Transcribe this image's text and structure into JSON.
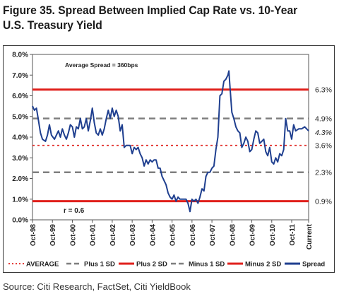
{
  "title": "Figure 35. Spread Between Implied Cap Rate vs. 10-Year U.S. Treasury Yield",
  "source": "Source: Citi Research, FactSet, Citi YieldBook",
  "chart_data": {
    "type": "line",
    "title": "Figure 35. Spread Between Implied Cap Rate vs. 10-Year U.S. Treasury Yield",
    "annotations": [
      "Average Spread = 360bps",
      "r =  0.6"
    ],
    "y_tick_labels": [
      "0.0%",
      "1.0%",
      "2.0%",
      "3.0%",
      "4.0%",
      "5.0%",
      "6.0%",
      "7.0%",
      "8.0%"
    ],
    "ylim": [
      0,
      8
    ],
    "x_tick_labels": [
      "Oct-98",
      "Oct-99",
      "Oct-00",
      "Oct-01",
      "Oct-02",
      "Oct-03",
      "Oct-04",
      "Oct-05",
      "Oct-06",
      "Oct-07",
      "Oct-08",
      "Oct-09",
      "Oct-10",
      "Oct-11",
      "Current"
    ],
    "x_tick_values": [
      1998.75,
      1999.75,
      2000.75,
      2001.75,
      2002.75,
      2003.75,
      2004.75,
      2005.75,
      2006.75,
      2007.75,
      2008.75,
      2009.75,
      2010.75,
      2011.75,
      2012.6
    ],
    "xlim": [
      1998.75,
      2012.6
    ],
    "reference_lines": [
      {
        "name": "AVERAGE",
        "value": 3.6,
        "label": "3.6%",
        "color": "#e0201c",
        "style": "dotted"
      },
      {
        "name": "Plus 1 SD",
        "value": 4.9,
        "label": "4.9%",
        "color": "#7f7f7f",
        "style": "dashed"
      },
      {
        "name": "Plus 2 SD",
        "value": 6.3,
        "label": "6.3%",
        "color": "#e0201c",
        "style": "solid"
      },
      {
        "name": "Minus 1 SD",
        "value": 2.3,
        "label": "2.3%",
        "color": "#7f7f7f",
        "style": "dashed"
      },
      {
        "name": "Minus 2 SD",
        "value": 0.9,
        "label": "0.9%",
        "color": "#e0201c",
        "style": "solid"
      }
    ],
    "current_value_label": "4.3%",
    "legend_position": "bottom",
    "legend": [
      "AVERAGE",
      "Plus 1 SD",
      "Plus 2 SD",
      "Minus 1 SD",
      "Minus 2 SD",
      "Spread"
    ],
    "series": [
      {
        "name": "Spread",
        "color": "#1f3f8f",
        "points": [
          [
            1998.75,
            5.5
          ],
          [
            1998.85,
            5.3
          ],
          [
            1998.95,
            5.4
          ],
          [
            1999.05,
            4.8
          ],
          [
            1999.15,
            4.2
          ],
          [
            1999.25,
            3.9
          ],
          [
            1999.4,
            3.8
          ],
          [
            1999.5,
            4.1
          ],
          [
            1999.6,
            4.6
          ],
          [
            1999.7,
            4.1
          ],
          [
            1999.85,
            3.9
          ],
          [
            1999.95,
            4.1
          ],
          [
            2000.05,
            4.3
          ],
          [
            2000.15,
            4.0
          ],
          [
            2000.25,
            4.4
          ],
          [
            2000.35,
            4.1
          ],
          [
            2000.45,
            3.9
          ],
          [
            2000.55,
            4.2
          ],
          [
            2000.65,
            4.6
          ],
          [
            2000.75,
            4.5
          ],
          [
            2000.85,
            4.0
          ],
          [
            2000.95,
            4.5
          ],
          [
            2001.05,
            4.4
          ],
          [
            2001.15,
            4.9
          ],
          [
            2001.25,
            4.4
          ],
          [
            2001.35,
            4.5
          ],
          [
            2001.45,
            4.9
          ],
          [
            2001.55,
            4.3
          ],
          [
            2001.65,
            4.8
          ],
          [
            2001.75,
            5.4
          ],
          [
            2001.85,
            4.7
          ],
          [
            2001.95,
            4.2
          ],
          [
            2002.05,
            4.1
          ],
          [
            2002.15,
            4.4
          ],
          [
            2002.25,
            4.1
          ],
          [
            2002.35,
            4.4
          ],
          [
            2002.45,
            4.9
          ],
          [
            2002.55,
            5.3
          ],
          [
            2002.65,
            4.9
          ],
          [
            2002.75,
            5.4
          ],
          [
            2002.85,
            5.0
          ],
          [
            2002.95,
            5.3
          ],
          [
            2003.05,
            5.0
          ],
          [
            2003.15,
            4.3
          ],
          [
            2003.25,
            4.6
          ],
          [
            2003.35,
            3.5
          ],
          [
            2003.45,
            3.6
          ],
          [
            2003.55,
            3.6
          ],
          [
            2003.65,
            3.6
          ],
          [
            2003.75,
            3.2
          ],
          [
            2003.85,
            3.5
          ],
          [
            2003.95,
            3.4
          ],
          [
            2004.05,
            3.5
          ],
          [
            2004.15,
            3.2
          ],
          [
            2004.25,
            3.0
          ],
          [
            2004.35,
            2.6
          ],
          [
            2004.45,
            2.9
          ],
          [
            2004.55,
            2.7
          ],
          [
            2004.65,
            2.9
          ],
          [
            2004.75,
            2.8
          ],
          [
            2004.85,
            2.9
          ],
          [
            2004.95,
            2.9
          ],
          [
            2005.05,
            2.5
          ],
          [
            2005.15,
            2.5
          ],
          [
            2005.25,
            2.1
          ],
          [
            2005.35,
            1.9
          ],
          [
            2005.45,
            1.7
          ],
          [
            2005.55,
            1.3
          ],
          [
            2005.65,
            1.1
          ],
          [
            2005.75,
            1.0
          ],
          [
            2005.85,
            1.2
          ],
          [
            2005.95,
            0.9
          ],
          [
            2006.05,
            1.1
          ],
          [
            2006.15,
            1.0
          ],
          [
            2006.25,
            1.0
          ],
          [
            2006.35,
            1.0
          ],
          [
            2006.45,
            1.0
          ],
          [
            2006.55,
            0.8
          ],
          [
            2006.65,
            0.4
          ],
          [
            2006.75,
            1.0
          ],
          [
            2006.85,
            0.9
          ],
          [
            2006.95,
            1.0
          ],
          [
            2007.05,
            0.8
          ],
          [
            2007.15,
            1.1
          ],
          [
            2007.25,
            1.5
          ],
          [
            2007.35,
            1.4
          ],
          [
            2007.45,
            2.1
          ],
          [
            2007.55,
            2.3
          ],
          [
            2007.65,
            2.3
          ],
          [
            2007.75,
            2.5
          ],
          [
            2007.85,
            2.6
          ],
          [
            2007.95,
            3.4
          ],
          [
            2008.05,
            4.0
          ],
          [
            2008.15,
            6.0
          ],
          [
            2008.25,
            6.1
          ],
          [
            2008.35,
            6.7
          ],
          [
            2008.45,
            6.8
          ],
          [
            2008.55,
            7.0
          ],
          [
            2008.6,
            7.2
          ],
          [
            2008.65,
            6.5
          ],
          [
            2008.75,
            5.2
          ],
          [
            2008.85,
            4.9
          ],
          [
            2008.95,
            4.5
          ],
          [
            2009.05,
            4.3
          ],
          [
            2009.15,
            4.2
          ],
          [
            2009.25,
            3.5
          ],
          [
            2009.35,
            3.7
          ],
          [
            2009.45,
            4.0
          ],
          [
            2009.55,
            3.8
          ],
          [
            2009.65,
            3.3
          ],
          [
            2009.75,
            3.4
          ],
          [
            2009.85,
            3.9
          ],
          [
            2009.95,
            4.3
          ],
          [
            2010.05,
            4.2
          ],
          [
            2010.15,
            3.7
          ],
          [
            2010.25,
            3.8
          ],
          [
            2010.35,
            3.9
          ],
          [
            2010.45,
            3.3
          ],
          [
            2010.55,
            3.1
          ],
          [
            2010.65,
            3.5
          ],
          [
            2010.75,
            2.8
          ],
          [
            2010.85,
            2.7
          ],
          [
            2010.95,
            3.0
          ],
          [
            2011.05,
            2.8
          ],
          [
            2011.15,
            3.2
          ],
          [
            2011.25,
            3.1
          ],
          [
            2011.35,
            3.4
          ],
          [
            2011.45,
            4.9
          ],
          [
            2011.55,
            4.3
          ],
          [
            2011.65,
            4.3
          ],
          [
            2011.75,
            3.9
          ],
          [
            2011.85,
            4.6
          ],
          [
            2011.95,
            4.3
          ],
          [
            2012.1,
            4.4
          ],
          [
            2012.25,
            4.4
          ],
          [
            2012.4,
            4.5
          ],
          [
            2012.6,
            4.3
          ]
        ]
      }
    ]
  }
}
